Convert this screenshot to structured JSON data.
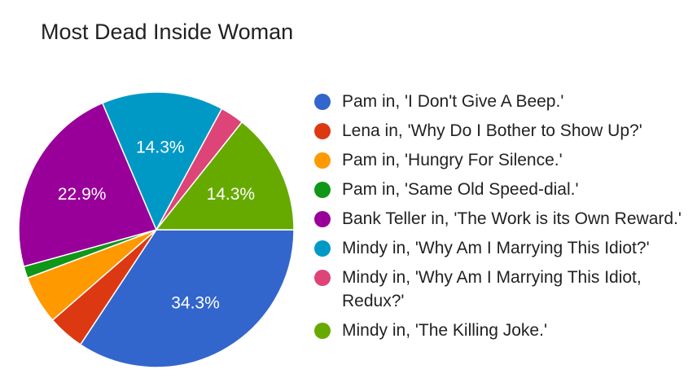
{
  "chart_data": {
    "type": "pie",
    "title": "Most Dead Inside Woman",
    "legend_position": "right",
    "slices": [
      {
        "label": "Pam in, 'I Don't Give A Beep.'",
        "value": 34.3,
        "color": "#3366cc",
        "data_label": "34.3%"
      },
      {
        "label": "Lena in, 'Why Do I Bother to Show Up?'",
        "value": 4.3,
        "color": "#dc3912",
        "data_label": ""
      },
      {
        "label": "Pam in, 'Hungry For Silence.'",
        "value": 5.7,
        "color": "#ff9900",
        "data_label": ""
      },
      {
        "label": "Pam in, 'Same Old Speed-dial.'",
        "value": 1.4,
        "color": "#109618",
        "data_label": ""
      },
      {
        "label": "Bank Teller in, 'The Work is its Own Reward.'",
        "value": 22.9,
        "color": "#990099",
        "data_label": "22.9%"
      },
      {
        "label": "Mindy in, 'Why Am I Marrying This Idiot?'",
        "value": 14.3,
        "color": "#0099c6",
        "data_label": "14.3%"
      },
      {
        "label": "Mindy in, 'Why Am I Marrying This Idiot, Redux?'",
        "value": 2.8,
        "color": "#dd4477",
        "data_label": ""
      },
      {
        "label": "Mindy in, 'The Killing Joke.'",
        "value": 14.3,
        "color": "#66aa00",
        "data_label": "14.3%"
      }
    ]
  }
}
